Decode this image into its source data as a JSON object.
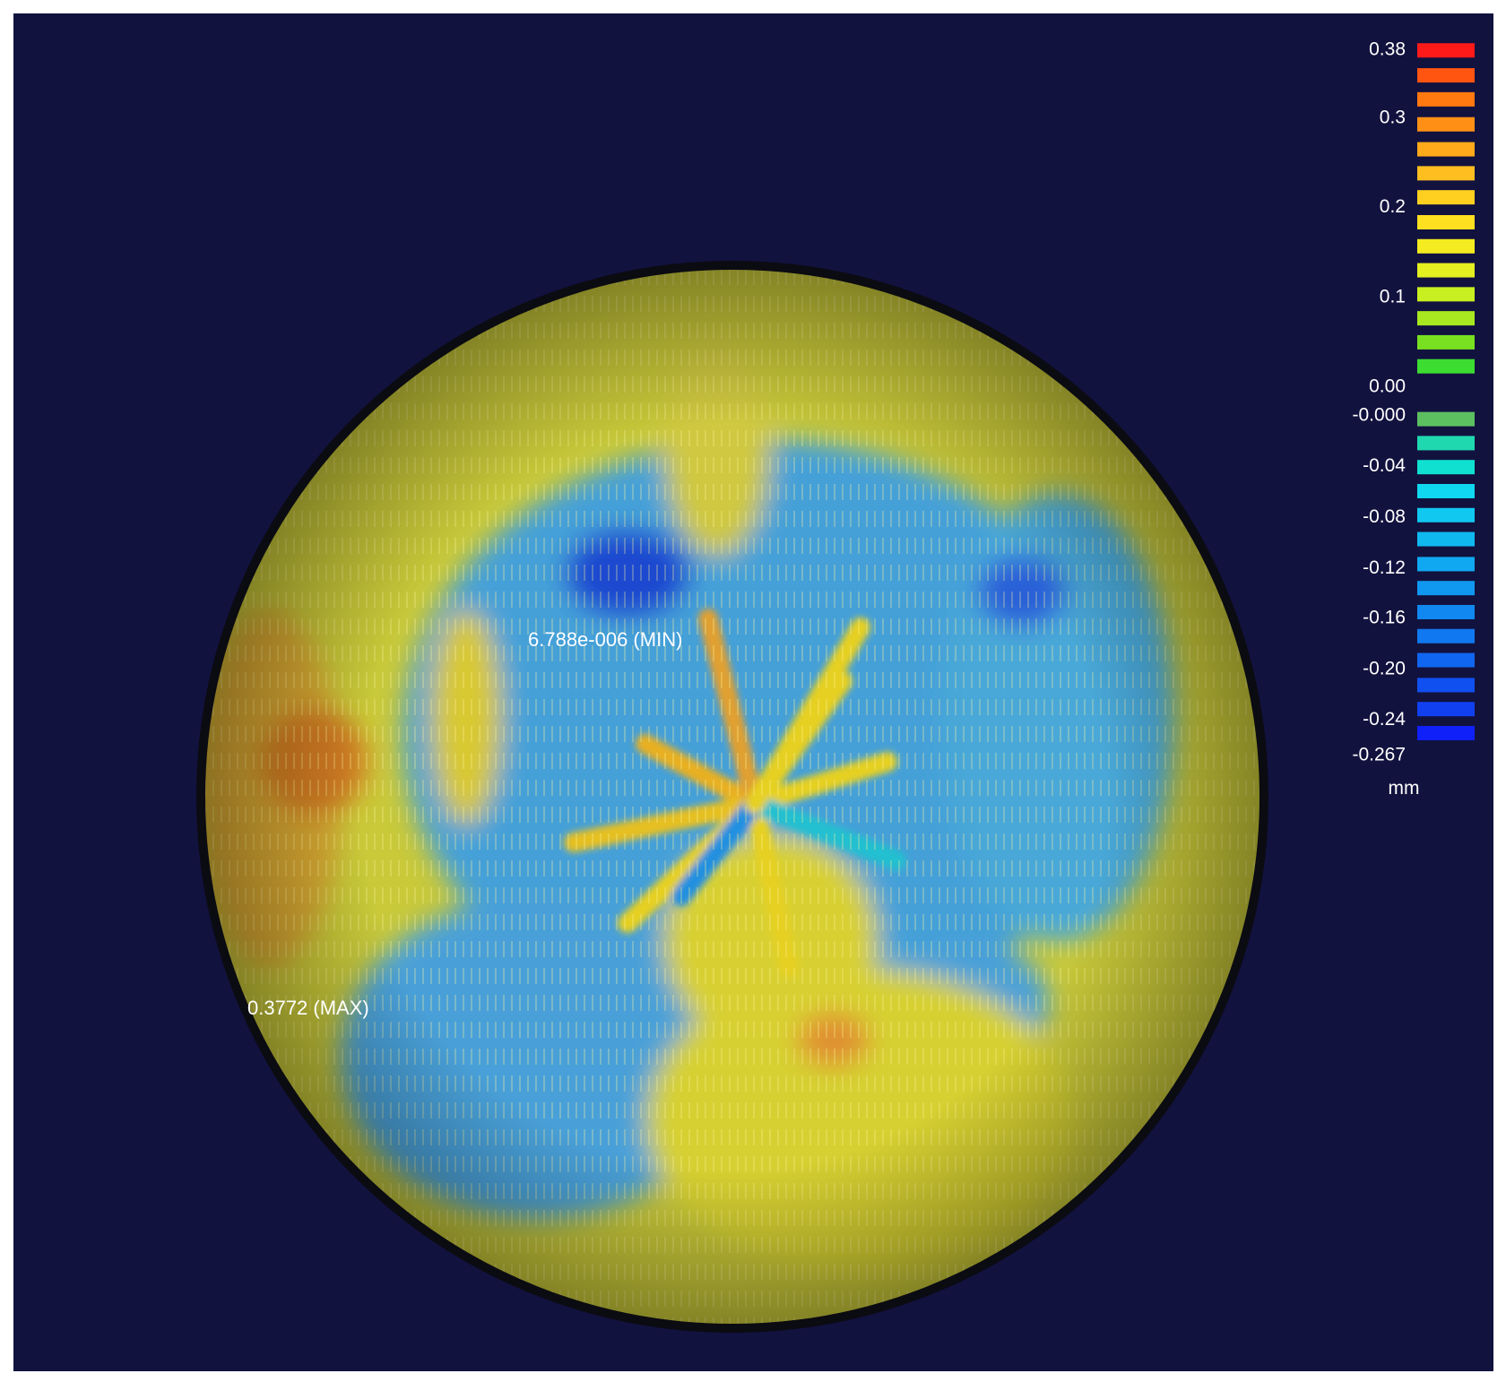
{
  "legend": {
    "labels": [
      "0.38",
      "0.3",
      "0.2",
      "0.1",
      "0.00",
      "-0.000",
      "-0.04",
      "-0.08",
      "-0.12",
      "-0.16",
      "-0.20",
      "-0.24",
      "-0.267"
    ],
    "unit": "mm",
    "colors": [
      "#ff1a1a",
      "#ff5510",
      "#ff7810",
      "#ff9015",
      "#ffaa1a",
      "#ffbe20",
      "#ffd020",
      "#ffe020",
      "#f4ec20",
      "#e4f020",
      "#c8f020",
      "#a8e820",
      "#78e020",
      "#3cdc30",
      "#5cc060",
      "#20d8b0",
      "#10e0d0",
      "#10d8f0",
      "#10c8f0",
      "#10b8f0",
      "#10a8f0",
      "#1098f0",
      "#1088f0",
      "#1078f0",
      "#1066f0",
      "#1050f0",
      "#1040f0",
      "#1020f8"
    ]
  },
  "annotations": {
    "min": "6.788e-006 (MIN)",
    "max": "0.3772 (MAX)"
  }
}
